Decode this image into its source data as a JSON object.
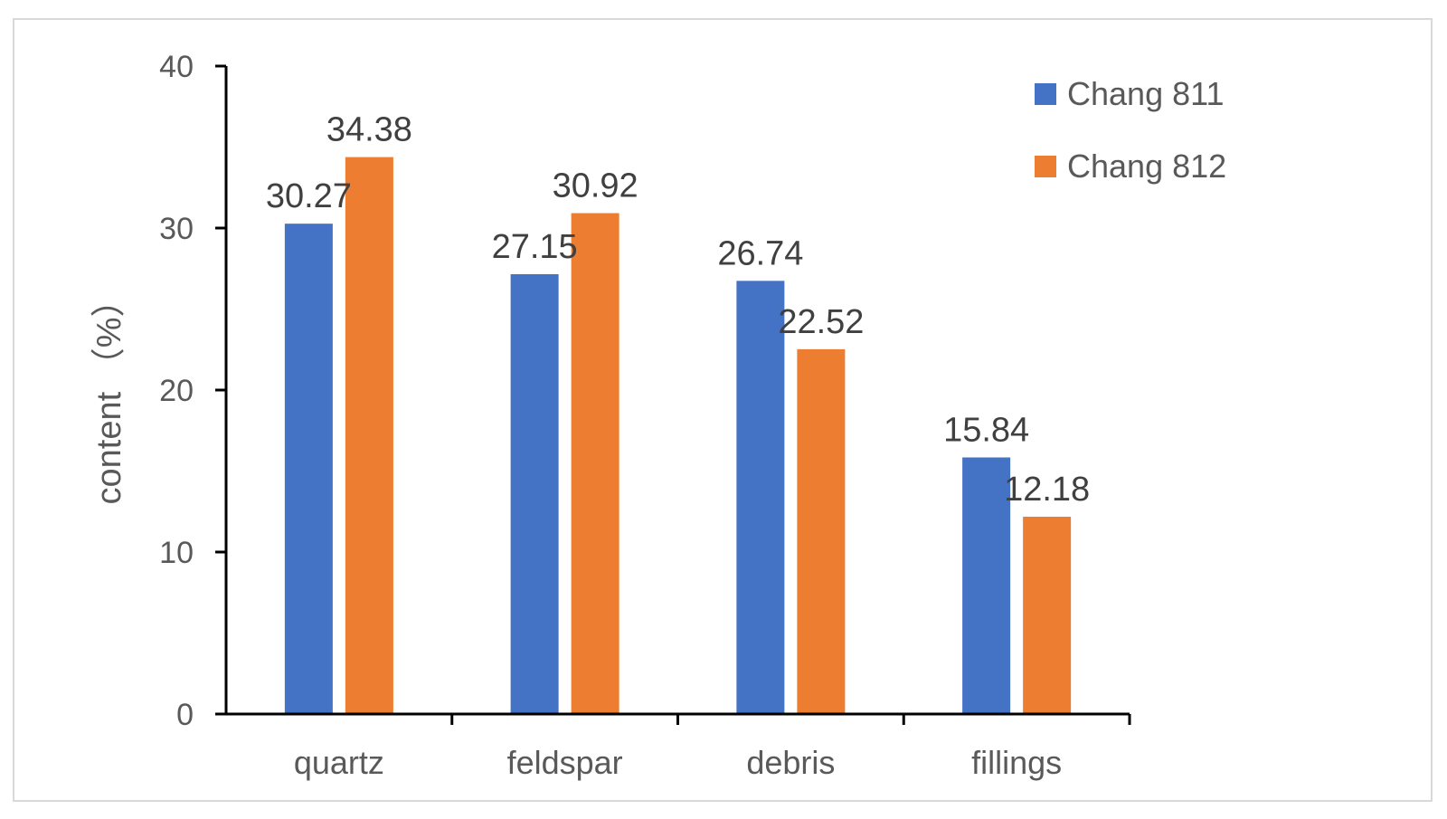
{
  "chart_data": {
    "type": "bar",
    "title": "",
    "xlabel": "",
    "ylabel": "content （%）",
    "categories": [
      "quartz",
      "feldspar",
      "debris",
      "fillings"
    ],
    "series": [
      {
        "name": "Chang 811",
        "values": [
          30.27,
          27.15,
          26.74,
          15.84
        ],
        "color": "#4472C4"
      },
      {
        "name": "Chang 812",
        "values": [
          34.38,
          30.92,
          22.52,
          12.18
        ],
        "color": "#ED7D31"
      }
    ],
    "ylim": [
      0,
      40
    ],
    "yticks": [
      0,
      10,
      20,
      30,
      40
    ],
    "grid": false,
    "legend_position": "top-right"
  }
}
